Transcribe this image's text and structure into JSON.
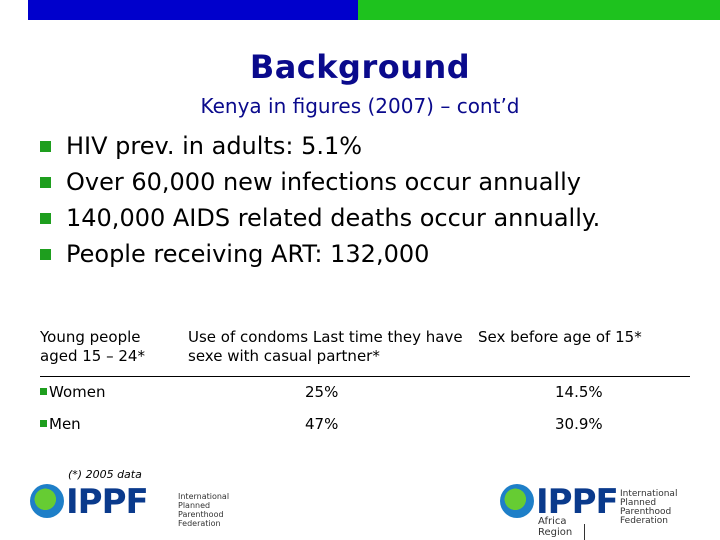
{
  "slide": {
    "title": "Background",
    "subtitle": "Kenya in figures (2007) – cont’d",
    "bullets": [
      "HIV prev. in adults: 5.1%",
      "Over 60,000 new infections occur annually",
      "140,000 AIDS related deaths occur annually.",
      "People receiving ART: 132,000"
    ]
  },
  "table": {
    "headers": [
      "Young people aged 15 – 24*",
      "Use of condoms Last time they have sexe with casual partner*",
      "Sex before age of 15*"
    ],
    "rows": [
      {
        "group": "Women",
        "condom_use": "25%",
        "sex_before_15": "14.5%"
      },
      {
        "group": "Men",
        "condom_use": "47%",
        "sex_before_15": "30.9%"
      }
    ]
  },
  "footnote": "(*) 2005 data",
  "logos": {
    "left": {
      "brand": "IPPF",
      "line1": "International",
      "line2": "Planned Parenthood",
      "line3": "Federation"
    },
    "right": {
      "brand": "IPPF",
      "line1": "International",
      "line2": "Planned Parenthood",
      "line3": "Federation",
      "region": "Africa Region"
    }
  },
  "colors": {
    "top_bar_blue": "#0000cc",
    "top_bar_green": "#1ec21e",
    "title": "#0a0a8c",
    "bullet": "#1e9e1e"
  }
}
